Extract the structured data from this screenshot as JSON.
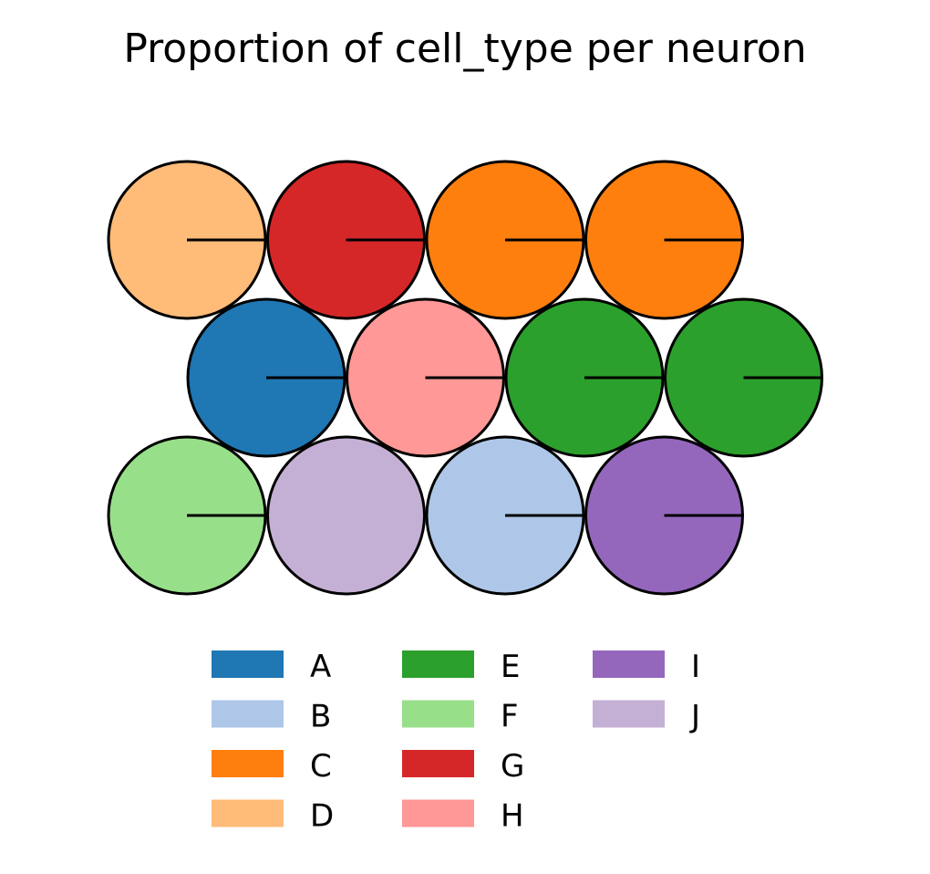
{
  "chart_data": {
    "type": "pie",
    "title": "Proportion of cell_type per neuron",
    "legend": {
      "placement": "bottom",
      "columns": 3,
      "entries": [
        {
          "label": "A",
          "color": "#1f77b4"
        },
        {
          "label": "B",
          "color": "#aec7e8"
        },
        {
          "label": "C",
          "color": "#ff7f0e"
        },
        {
          "label": "D",
          "color": "#ffbb78"
        },
        {
          "label": "E",
          "color": "#2ca02c"
        },
        {
          "label": "F",
          "color": "#98df8a"
        },
        {
          "label": "G",
          "color": "#d62728"
        },
        {
          "label": "H",
          "color": "#ff9896"
        },
        {
          "label": "I",
          "color": "#9467bd"
        },
        {
          "label": "J",
          "color": "#c5b0d5"
        }
      ]
    },
    "neurons": [
      {
        "row": 0,
        "col": 0,
        "slices": [
          {
            "cell_type": "D",
            "proportion": 1.0
          }
        ]
      },
      {
        "row": 0,
        "col": 1,
        "slices": [
          {
            "cell_type": "G",
            "proportion": 1.0
          }
        ]
      },
      {
        "row": 0,
        "col": 2,
        "slices": [
          {
            "cell_type": "C",
            "proportion": 1.0
          }
        ]
      },
      {
        "row": 0,
        "col": 3,
        "slices": [
          {
            "cell_type": "C",
            "proportion": 1.0
          }
        ]
      },
      {
        "row": 1,
        "col": 0,
        "slices": [
          {
            "cell_type": "A",
            "proportion": 1.0
          }
        ]
      },
      {
        "row": 1,
        "col": 1,
        "slices": [
          {
            "cell_type": "H",
            "proportion": 1.0
          }
        ]
      },
      {
        "row": 1,
        "col": 2,
        "slices": [
          {
            "cell_type": "E",
            "proportion": 1.0
          }
        ]
      },
      {
        "row": 1,
        "col": 3,
        "slices": [
          {
            "cell_type": "E",
            "proportion": 1.0
          }
        ]
      },
      {
        "row": 2,
        "col": 0,
        "slices": [
          {
            "cell_type": "F",
            "proportion": 1.0
          }
        ]
      },
      {
        "row": 2,
        "col": 1,
        "slices": [
          {
            "cell_type": "J",
            "proportion": 1.0
          }
        ]
      },
      {
        "row": 2,
        "col": 2,
        "slices": [
          {
            "cell_type": "B",
            "proportion": 1.0
          }
        ]
      },
      {
        "row": 2,
        "col": 3,
        "slices": [
          {
            "cell_type": "I",
            "proportion": 1.0
          }
        ]
      }
    ]
  }
}
